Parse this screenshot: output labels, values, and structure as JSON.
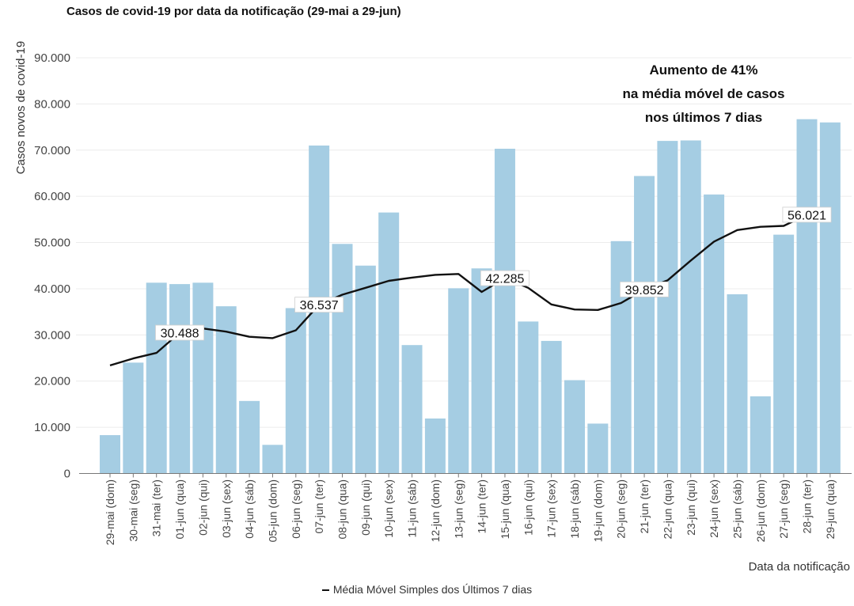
{
  "chart_data": {
    "type": "bar",
    "title": "Casos de covid-19 por data da notificação (29-mai a 29-jun)",
    "xlabel": "Data da notificação",
    "ylabel": "Casos novos de covid-19",
    "ylim": [
      0,
      90000
    ],
    "yticks": [
      "0",
      "10.000",
      "20.000",
      "30.000",
      "40.000",
      "50.000",
      "60.000",
      "70.000",
      "80.000",
      "90.000"
    ],
    "grid": "horizontal",
    "bar_color": "#a5cde3",
    "line_color": "#111111",
    "categories": [
      "29-mai (dom)",
      "30-mai (seg)",
      "31-mai (ter)",
      "01-jun (qua)",
      "02-jun (qui)",
      "03-jun (sex)",
      "04-jun (sáb)",
      "05-jun (dom)",
      "06-jun (seg)",
      "07-jun (ter)",
      "08-jun (qua)",
      "09-jun (qui)",
      "10-jun (sex)",
      "11-jun (sáb)",
      "12-jun (dom)",
      "13-jun (seg)",
      "14-jun (ter)",
      "15-jun (qua)",
      "16-jun (qui)",
      "17-jun (sex)",
      "18-jun (sáb)",
      "19-jun (dom)",
      "20-jun (seg)",
      "21-jun (ter)",
      "22-jun (qua)",
      "23-jun (qui)",
      "24-jun (sex)",
      "25-jun (sáb)",
      "26-jun (dom)",
      "27-jun (seg)",
      "28-jun (ter)",
      "29-jun (qua)"
    ],
    "series": [
      {
        "type": "bar",
        "values": [
          8300,
          24000,
          41300,
          41000,
          41300,
          36200,
          15700,
          6200,
          35800,
          71000,
          49700,
          45000,
          56500,
          27800,
          11900,
          40100,
          44400,
          70300,
          32900,
          28700,
          20200,
          10800,
          50300,
          64400,
          72000,
          72100,
          60400,
          38800,
          16700,
          51700,
          76700,
          76000
        ]
      },
      {
        "type": "line",
        "name": "Média Móvel Simples dos Últimos 7 dias",
        "values": [
          23400,
          24900,
          26100,
          30488,
          31400,
          30700,
          29600,
          29300,
          31000,
          36537,
          38700,
          40200,
          41700,
          42400,
          43000,
          43200,
          39300,
          42285,
          40200,
          36600,
          35500,
          35400,
          36900,
          39852,
          41800,
          46100,
          50200,
          52700,
          53400,
          53600,
          56021,
          56021
        ]
      }
    ],
    "point_labels": [
      {
        "index": 3,
        "text": "30.488"
      },
      {
        "index": 9,
        "text": "36.537"
      },
      {
        "index": 17,
        "text": "42.285"
      },
      {
        "index": 23,
        "text": "39.852"
      },
      {
        "index": 30,
        "text": "56.021"
      }
    ],
    "annotation": [
      "Aumento de 41%",
      "na média móvel de casos",
      "nos últimos 7 dias"
    ],
    "legend": {
      "label": "Média Móvel Simples dos Últimos 7 dias",
      "position": "bottom"
    }
  }
}
